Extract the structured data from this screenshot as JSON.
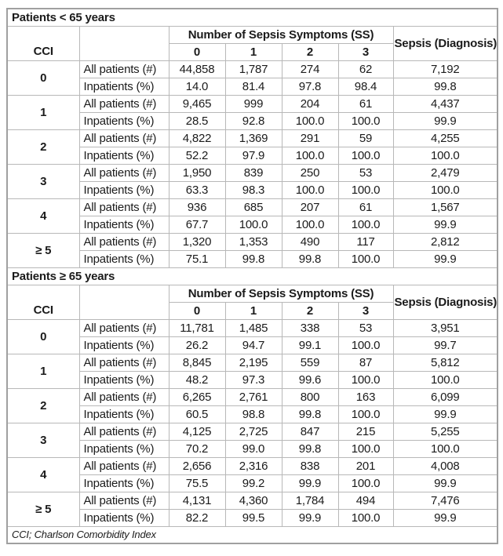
{
  "colors": {
    "border_inner": "#b8b8b8",
    "border_outer": "#a0a0a0",
    "text": "#1b1b1b",
    "background": "#ffffff"
  },
  "header": {
    "cci_label": "CCI",
    "ss_group_label": "Number of Sepsis Symptoms (SS)",
    "ss_cols": [
      "0",
      "1",
      "2",
      "3"
    ],
    "sepsis_label": "Sepsis (Diagnosis)",
    "row_labels": [
      "All patients (#)",
      "Inpatients (%)"
    ]
  },
  "sections": [
    {
      "title": "Patients < 65 years",
      "groups": [
        {
          "cci": "0",
          "all_patients": [
            "44,858",
            "1,787",
            "274",
            "62",
            "7,192"
          ],
          "inpatients": [
            "14.0",
            "81.4",
            "97.8",
            "98.4",
            "99.8"
          ]
        },
        {
          "cci": "1",
          "all_patients": [
            "9,465",
            "999",
            "204",
            "61",
            "4,437"
          ],
          "inpatients": [
            "28.5",
            "92.8",
            "100.0",
            "100.0",
            "99.9"
          ]
        },
        {
          "cci": "2",
          "all_patients": [
            "4,822",
            "1,369",
            "291",
            "59",
            "4,255"
          ],
          "inpatients": [
            "52.2",
            "97.9",
            "100.0",
            "100.0",
            "100.0"
          ]
        },
        {
          "cci": "3",
          "all_patients": [
            "1,950",
            "839",
            "250",
            "53",
            "2,479"
          ],
          "inpatients": [
            "63.3",
            "98.3",
            "100.0",
            "100.0",
            "100.0"
          ]
        },
        {
          "cci": "4",
          "all_patients": [
            "936",
            "685",
            "207",
            "61",
            "1,567"
          ],
          "inpatients": [
            "67.7",
            "100.0",
            "100.0",
            "100.0",
            "99.9"
          ]
        },
        {
          "cci": "≥ 5",
          "all_patients": [
            "1,320",
            "1,353",
            "490",
            "117",
            "2,812"
          ],
          "inpatients": [
            "75.1",
            "99.8",
            "99.8",
            "100.0",
            "99.9"
          ]
        }
      ]
    },
    {
      "title": "Patients ≥ 65 years",
      "groups": [
        {
          "cci": "0",
          "all_patients": [
            "11,781",
            "1,485",
            "338",
            "53",
            "3,951"
          ],
          "inpatients": [
            "26.2",
            "94.7",
            "99.1",
            "100.0",
            "99.7"
          ]
        },
        {
          "cci": "1",
          "all_patients": [
            "8,845",
            "2,195",
            "559",
            "87",
            "5,812"
          ],
          "inpatients": [
            "48.2",
            "97.3",
            "99.6",
            "100.0",
            "100.0"
          ]
        },
        {
          "cci": "2",
          "all_patients": [
            "6,265",
            "2,761",
            "800",
            "163",
            "6,099"
          ],
          "inpatients": [
            "60.5",
            "98.8",
            "99.8",
            "100.0",
            "99.9"
          ]
        },
        {
          "cci": "3",
          "all_patients": [
            "4,125",
            "2,725",
            "847",
            "215",
            "5,255"
          ],
          "inpatients": [
            "70.2",
            "99.0",
            "99.8",
            "100.0",
            "100.0"
          ]
        },
        {
          "cci": "4",
          "all_patients": [
            "2,656",
            "2,316",
            "838",
            "201",
            "4,008"
          ],
          "inpatients": [
            "75.5",
            "99.2",
            "99.9",
            "100.0",
            "99.9"
          ]
        },
        {
          "cci": "≥ 5",
          "all_patients": [
            "4,131",
            "4,360",
            "1,784",
            "494",
            "7,476"
          ],
          "inpatients": [
            "82.2",
            "99.5",
            "99.9",
            "100.0",
            "99.9"
          ]
        }
      ]
    }
  ],
  "footnote": "CCI; Charlson Comorbidity Index"
}
